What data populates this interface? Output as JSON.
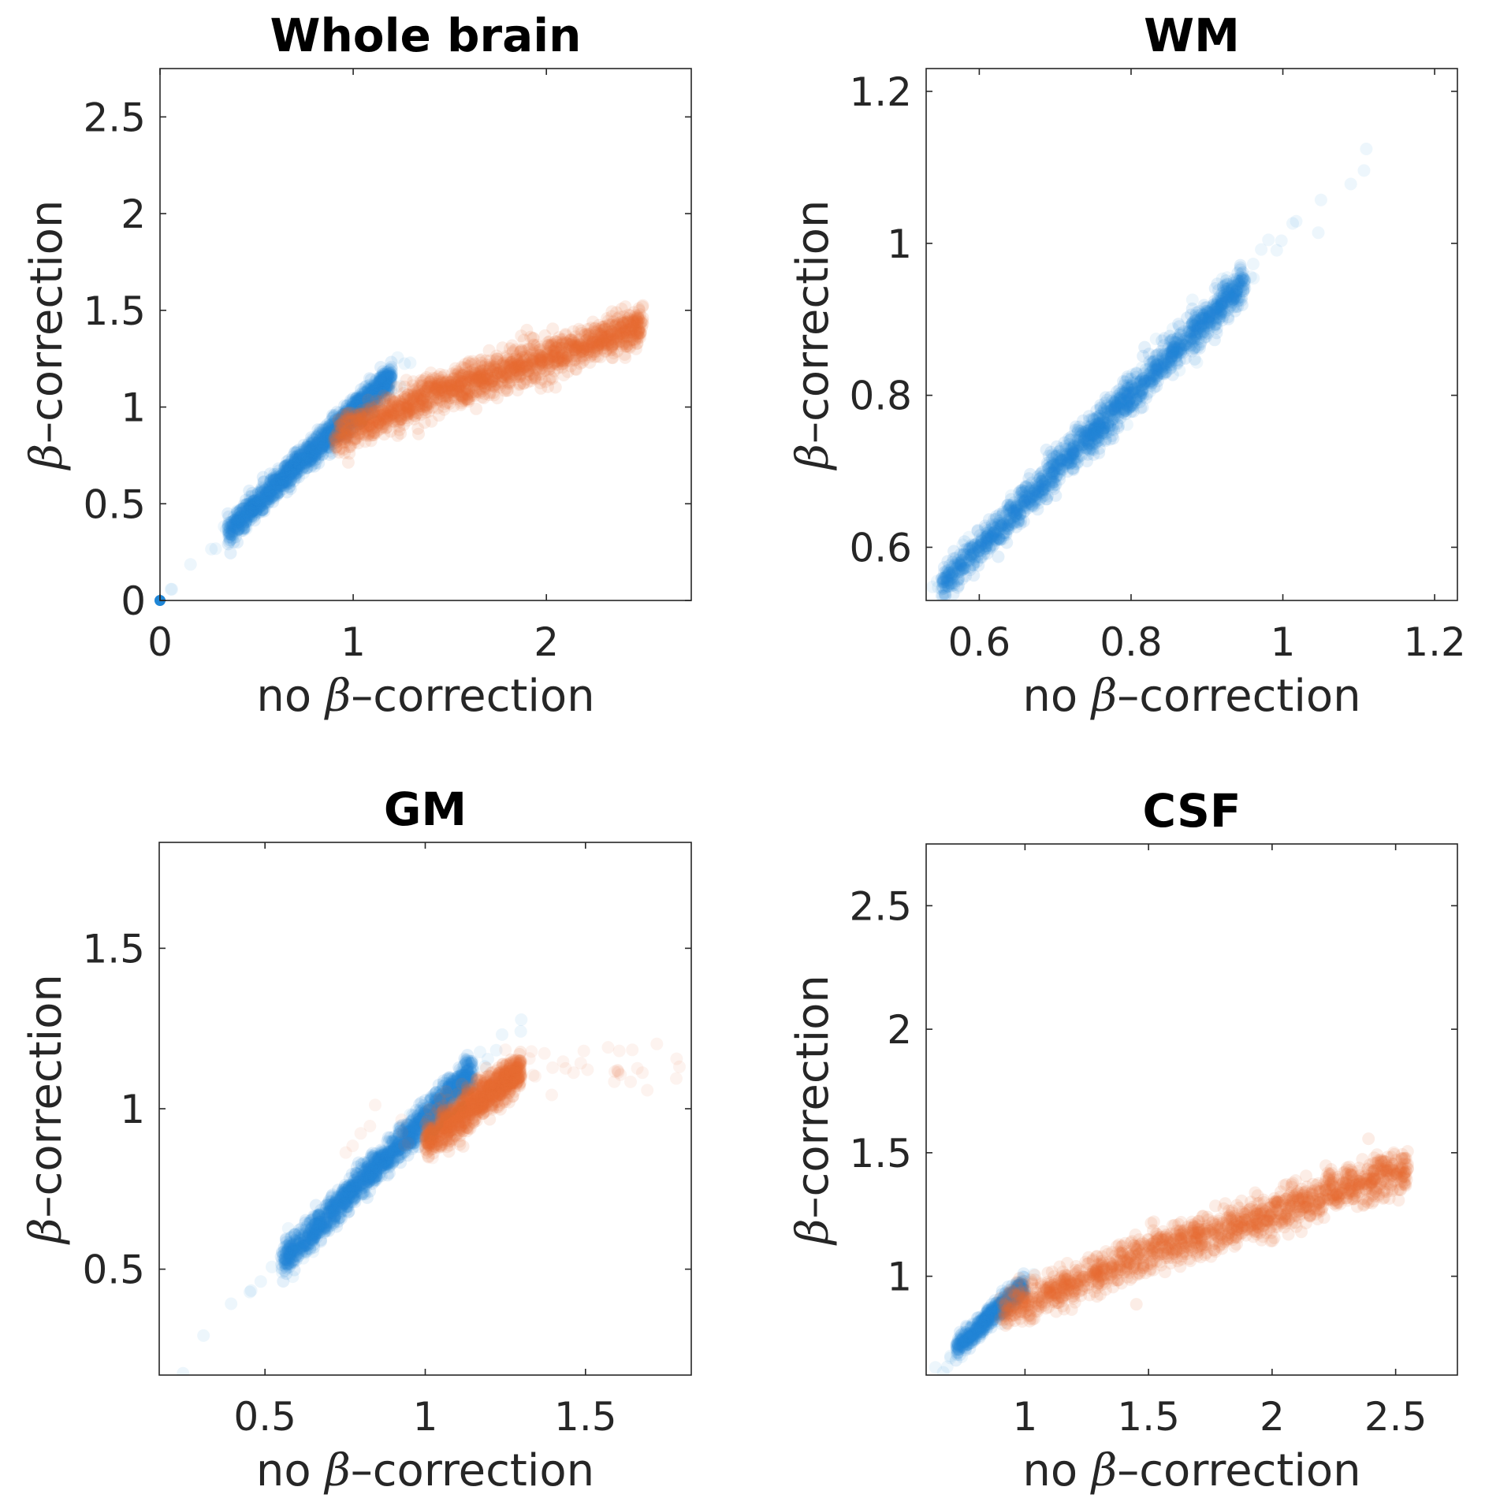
{
  "colors": {
    "blue": "#1f86d6",
    "orange": "#e96a32"
  },
  "chart_data": [
    {
      "type": "scatter",
      "title": "Whole brain",
      "xlabel": {
        "prefix": "no ",
        "beta": "β",
        "suffix": "–correction"
      },
      "ylabel": {
        "beta": "β",
        "suffix": "–correction"
      },
      "xlim": [
        0,
        2.75
      ],
      "ylim": [
        0,
        2.75
      ],
      "xticks": [
        0,
        1,
        2
      ],
      "xticklabels": [
        "0",
        "1",
        "2"
      ],
      "yticks": [
        0,
        0.5,
        1,
        1.5,
        2,
        2.5
      ],
      "yticklabels": [
        "0",
        "0.5",
        "1",
        "1.5",
        "2",
        "2.5"
      ],
      "grid": false,
      "series": [
        {
          "name": "blue",
          "color": "#1f86d6",
          "x_range": [
            0.35,
            1.2
          ],
          "slope": 0.95,
          "intercept": 0.02,
          "spread": 0.035,
          "count": 1400,
          "sparse_x_range": [
            0.05,
            1.3
          ],
          "sparse_count": 40
        },
        {
          "name": "orange",
          "color": "#e96a32",
          "curve": [
            [
              0.9,
              0.85
            ],
            [
              1.2,
              0.97
            ],
            [
              1.5,
              1.1
            ],
            [
              1.9,
              1.22
            ],
            [
              2.3,
              1.35
            ],
            [
              2.5,
              1.42
            ]
          ],
          "spread": 0.05,
          "count": 1600,
          "x_range": [
            0.9,
            2.5
          ]
        }
      ],
      "annotations": [
        {
          "x": 0,
          "y": 0,
          "color": "#1f86d6"
        }
      ]
    },
    {
      "type": "scatter",
      "title": "WM",
      "xlabel": {
        "prefix": "no ",
        "beta": "β",
        "suffix": "–correction"
      },
      "ylabel": {
        "beta": "β",
        "suffix": "–correction"
      },
      "xlim": [
        0.53,
        1.23
      ],
      "ylim": [
        0.53,
        1.23
      ],
      "xticks": [
        0.6,
        0.8,
        1,
        1.2
      ],
      "xticklabels": [
        "0.6",
        "0.8",
        "1",
        "1.2"
      ],
      "yticks": [
        0.6,
        0.8,
        1,
        1.2
      ],
      "yticklabels": [
        "0.6",
        "0.8",
        "1",
        "1.2"
      ],
      "grid": false,
      "series": [
        {
          "name": "blue",
          "color": "#1f86d6",
          "x_range": [
            0.55,
            0.95
          ],
          "slope": 1.0,
          "intercept": 0.0,
          "spread": 0.012,
          "count": 1500,
          "sparse_x_range": [
            0.53,
            1.12
          ],
          "sparse_count": 45
        }
      ]
    },
    {
      "type": "scatter",
      "title": "GM",
      "xlabel": {
        "prefix": "no ",
        "beta": "β",
        "suffix": "–correction"
      },
      "ylabel": {
        "beta": "β",
        "suffix": "–correction"
      },
      "xlim": [
        0.17,
        1.83
      ],
      "ylim": [
        0.17,
        1.83
      ],
      "xticks": [
        0.5,
        1,
        1.5
      ],
      "xticklabels": [
        "0.5",
        "1",
        "1.5"
      ],
      "yticks": [
        0.5,
        1,
        1.5
      ],
      "yticklabels": [
        "0.5",
        "1",
        "1.5"
      ],
      "grid": false,
      "series": [
        {
          "name": "blue",
          "color": "#1f86d6",
          "x_range": [
            0.55,
            1.15
          ],
          "slope": 1.0,
          "intercept": -0.03,
          "spread": 0.025,
          "count": 1400,
          "sparse_x_range": [
            0.22,
            1.3
          ],
          "sparse_count": 40
        },
        {
          "name": "orange",
          "color": "#e96a32",
          "curve": [
            [
              1.0,
              0.9
            ],
            [
              1.1,
              0.97
            ],
            [
              1.2,
              1.05
            ],
            [
              1.3,
              1.12
            ]
          ],
          "spread": 0.03,
          "count": 900,
          "x_range": [
            1.0,
            1.3
          ],
          "sparse_x_range": [
            0.75,
            1.8
          ],
          "sparse_count": 60
        }
      ]
    },
    {
      "type": "scatter",
      "title": "CSF",
      "xlabel": {
        "prefix": "no ",
        "beta": "β",
        "suffix": "–correction"
      },
      "ylabel": {
        "beta": "β",
        "suffix": "–correction"
      },
      "xlim": [
        0.6,
        2.75
      ],
      "ylim": [
        0.6,
        2.75
      ],
      "xticks": [
        1,
        1.5,
        2,
        2.5
      ],
      "xticklabels": [
        "1",
        "1.5",
        "2",
        "2.5"
      ],
      "yticks": [
        1,
        1.5,
        2,
        2.5
      ],
      "yticklabels": [
        "1",
        "1.5",
        "2",
        "2.5"
      ],
      "grid": false,
      "series": [
        {
          "name": "blue",
          "color": "#1f86d6",
          "x_range": [
            0.72,
            1.0
          ],
          "slope": 0.95,
          "intercept": 0.02,
          "spread": 0.02,
          "count": 500,
          "sparse_x_range": [
            0.62,
            1.05
          ],
          "sparse_count": 20
        },
        {
          "name": "orange",
          "color": "#e96a32",
          "curve": [
            [
              0.9,
              0.85
            ],
            [
              1.2,
              0.97
            ],
            [
              1.5,
              1.1
            ],
            [
              1.9,
              1.22
            ],
            [
              2.3,
              1.36
            ],
            [
              2.55,
              1.43
            ]
          ],
          "spread": 0.04,
          "count": 1500,
          "x_range": [
            0.9,
            2.55
          ]
        }
      ]
    }
  ]
}
